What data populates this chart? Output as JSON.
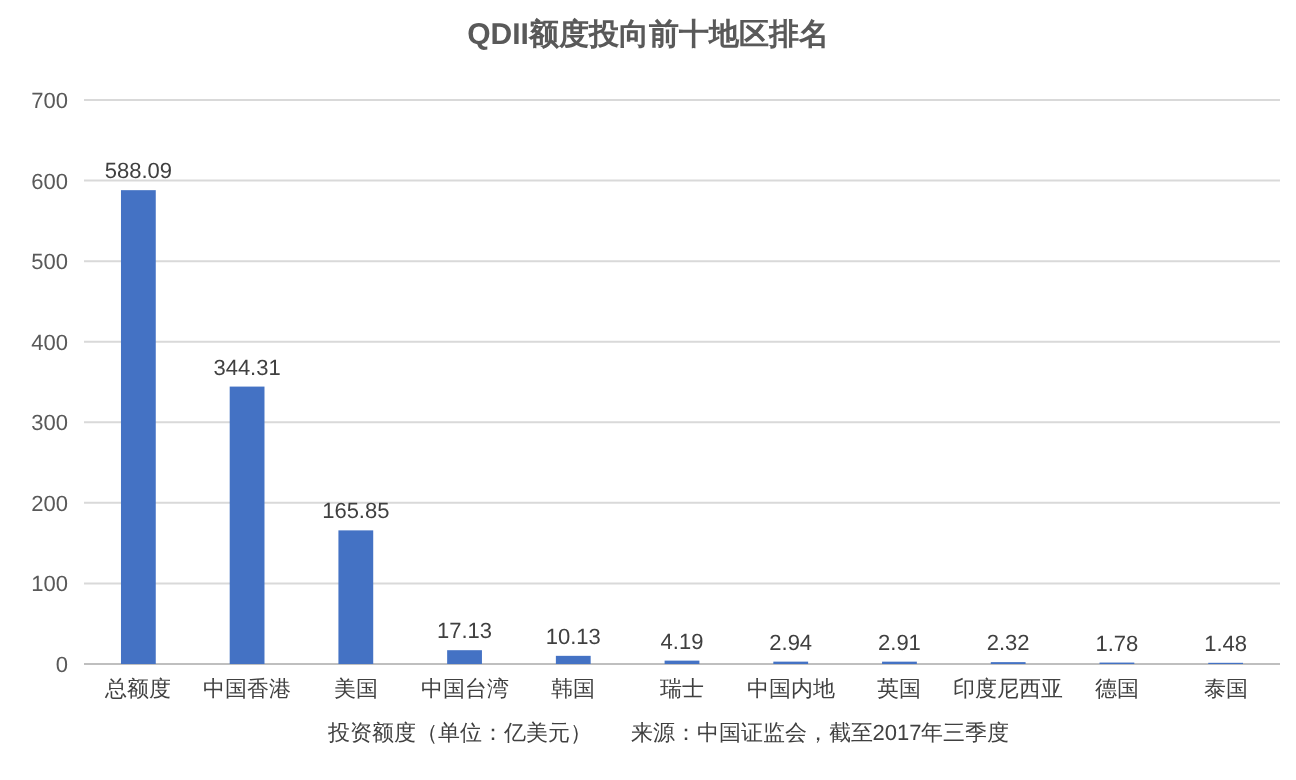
{
  "chart_data": {
    "type": "bar",
    "title": "QDII额度投向前十地区排名",
    "categories": [
      "总额度",
      "中国香港",
      "美国",
      "中国台湾",
      "韩国",
      "瑞士",
      "中国内地",
      "英国",
      "印度尼西亚",
      "德国",
      "泰国"
    ],
    "values": [
      588.09,
      344.31,
      165.85,
      17.13,
      10.13,
      4.19,
      2.94,
      2.91,
      2.32,
      1.78,
      1.48
    ],
    "color": "#4472c4",
    "data_labels": true,
    "grid": "y",
    "ylim": [
      0,
      700
    ],
    "yticks": [
      0,
      100,
      200,
      300,
      400,
      500,
      600,
      700
    ],
    "annotations": [
      "投资额度（单位：亿美元）",
      "来源：中国证监会，截至2017年三季度"
    ]
  }
}
